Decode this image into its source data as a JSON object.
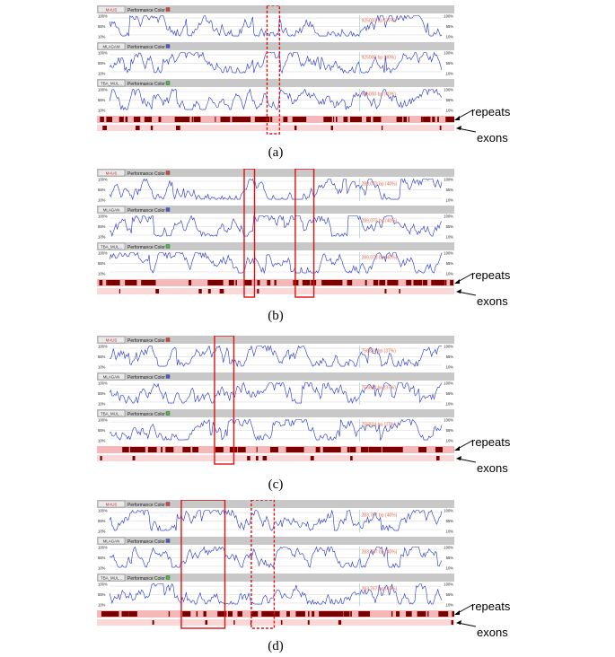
{
  "panels": [
    {
      "id": "a",
      "caption": "(a)",
      "tracks": [
        {
          "button": "MAUS",
          "title": "Performance Color",
          "swatch": "#e04040",
          "annotation": "925000 bp (37%)",
          "ticks": [
            "100%",
            "55%",
            "10%"
          ]
        },
        {
          "button": "MLAGAM",
          "title": "Performance Color",
          "swatch": "#4a5bd6",
          "annotation": "925000 bp (30%)",
          "ticks": [
            "100%",
            "55%",
            "10%"
          ]
        },
        {
          "button": "TBA_MUL...",
          "title": "Performance Color",
          "swatch": "#40c040",
          "annotation": "925000 bp (40%)",
          "ticks": [
            "100%",
            "55%",
            "10%"
          ]
        }
      ],
      "highlights": [
        {
          "start": 0.476,
          "end": 0.511,
          "style": "dashed"
        }
      ]
    },
    {
      "id": "b",
      "caption": "(b)",
      "tracks": [
        {
          "button": "MAUS",
          "title": "Performance Color",
          "swatch": "#e04040",
          "annotation": "289,073 bp (40%)",
          "ticks": [
            "100%",
            "55%",
            "10%"
          ]
        },
        {
          "button": "MLAGAN",
          "title": "Performance Color",
          "swatch": "#4a5bd6",
          "annotation": "289,073 bp (40%)",
          "ticks": [
            "100%",
            "55%",
            "10%"
          ]
        },
        {
          "button": "TBA_MUL...",
          "title": "Performance Color",
          "swatch": "#40c040",
          "annotation": "289,073 bp (40%)",
          "ticks": [
            "100%",
            "55%",
            "10%"
          ]
        }
      ],
      "highlights": [
        {
          "start": 0.412,
          "end": 0.441,
          "style": "solid"
        },
        {
          "start": 0.555,
          "end": 0.607,
          "style": "solid"
        }
      ]
    },
    {
      "id": "c",
      "caption": "(c)",
      "tracks": [
        {
          "button": "MAUS",
          "title": "Performance Color",
          "swatch": "#e04040",
          "annotation": "756834 bp (37%)",
          "ticks": [
            "100%",
            "55%",
            "10%"
          ]
        },
        {
          "button": "MLAGAN",
          "title": "Performance Color",
          "swatch": "#4a5bd6",
          "annotation": "756834 bp (37%)",
          "ticks": [
            "100%",
            "55%",
            "10%"
          ]
        },
        {
          "button": "TBA_MUL...",
          "title": "Performance Color",
          "swatch": "#40c040",
          "annotation": "756834 bp (37%)",
          "ticks": [
            "100%",
            "55%",
            "10%"
          ]
        }
      ],
      "highlights": [
        {
          "start": 0.329,
          "end": 0.383,
          "style": "solid"
        }
      ]
    },
    {
      "id": "d",
      "caption": "(d)",
      "tracks": [
        {
          "button": "MAUS",
          "title": "Performance Color",
          "swatch": "#e04040",
          "annotation": "283,767 bp (40%)",
          "ticks": [
            "100%",
            "55%",
            "10%"
          ]
        },
        {
          "button": "MLAGAN",
          "title": "Performance Color",
          "swatch": "#4a5bd6",
          "annotation": "283,767 bp (40%)",
          "ticks": [
            "100%",
            "55%",
            "10%"
          ]
        },
        {
          "button": "TBA_MUL...",
          "title": "Performance Color",
          "swatch": "#40c040",
          "annotation": "283,767 bp (40%)",
          "ticks": [
            "100%",
            "55%",
            "10%"
          ]
        }
      ],
      "highlights": [
        {
          "start": 0.236,
          "end": 0.358,
          "style": "solid"
        },
        {
          "start": 0.432,
          "end": 0.496,
          "style": "dashed"
        }
      ]
    }
  ],
  "labels": {
    "repeats": "repeats",
    "exons": "exons"
  },
  "colors": {
    "curve": "#2230c8",
    "header": "#c8c8c8",
    "repeat_bar": "#f4b8b8",
    "repeat_block": "#7a0000",
    "highlight": "#e01010",
    "annotation": "#e06a4a"
  }
}
